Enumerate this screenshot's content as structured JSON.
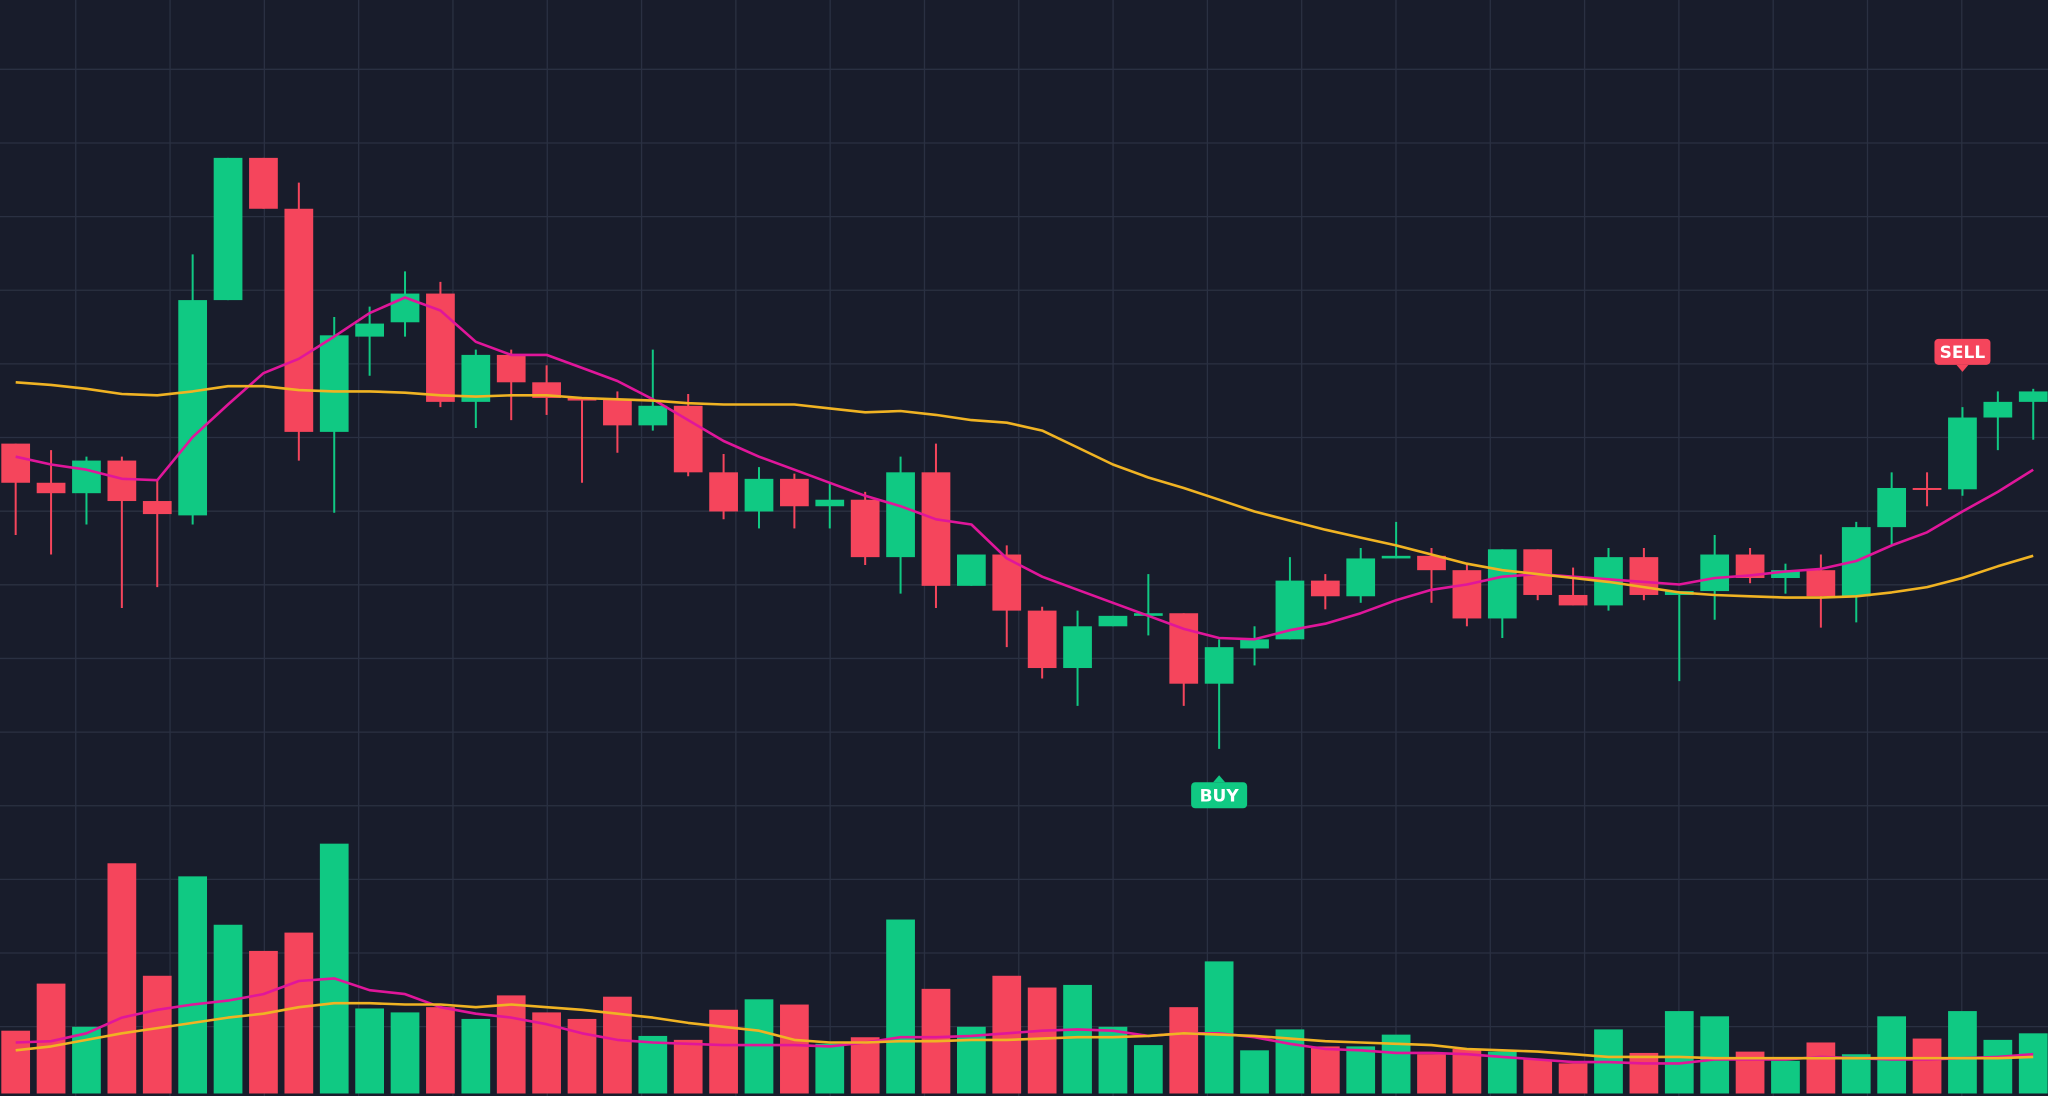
{
  "chart_data": [
    {
      "type": "candlestick",
      "ylim": [
        0,
        84
      ],
      "grid": true,
      "up_color": "#10c983",
      "down_color": "#f5455c",
      "open": [
        50.0,
        47.0,
        46.2,
        48.7,
        45.6,
        44.5,
        61.0,
        71.9,
        68.0,
        50.9,
        58.2,
        59.3,
        61.5,
        53.2,
        56.8,
        54.7,
        53.5,
        53.4,
        51.4,
        52.9,
        47.8,
        44.8,
        47.3,
        45.2,
        45.7,
        41.3,
        47.8,
        39.1,
        41.5,
        37.2,
        32.8,
        36.0,
        36.8,
        37.0,
        31.6,
        34.3,
        35.0,
        39.5,
        38.3,
        41.2,
        41.4,
        40.3,
        36.6,
        41.9,
        38.4,
        37.6,
        41.3,
        38.4,
        38.7,
        41.5,
        39.7,
        40.3,
        38.3,
        43.6,
        46.6,
        46.5,
        52.0,
        53.2
      ],
      "high": [
        50.0,
        49.5,
        49.0,
        49.0,
        47.2,
        64.5,
        71.9,
        71.9,
        70.0,
        59.7,
        60.5,
        63.2,
        62.4,
        57.2,
        57.2,
        56.0,
        53.5,
        54.0,
        57.2,
        53.8,
        49.2,
        48.2,
        47.7,
        47.0,
        46.3,
        49.0,
        50.0,
        41.5,
        42.2,
        37.5,
        37.2,
        36.8,
        40.0,
        37.0,
        35.0,
        36.0,
        41.3,
        40.0,
        42.0,
        44.0,
        42.0,
        40.8,
        41.9,
        41.9,
        40.5,
        42.0,
        42.0,
        38.7,
        43.0,
        42.0,
        40.8,
        41.5,
        44.0,
        47.8,
        47.8,
        52.8,
        54.0,
        54.2
      ],
      "low": [
        43.0,
        41.5,
        43.8,
        37.4,
        39.0,
        43.8,
        61.0,
        68.0,
        48.7,
        44.7,
        55.2,
        58.2,
        52.8,
        51.2,
        51.8,
        52.2,
        47.0,
        49.3,
        51.0,
        47.5,
        44.2,
        43.5,
        43.5,
        43.5,
        40.7,
        38.5,
        37.4,
        39.1,
        34.4,
        32.0,
        29.9,
        36.0,
        35.3,
        29.9,
        26.6,
        33.0,
        35.0,
        37.3,
        37.8,
        41.2,
        37.8,
        36.0,
        35.1,
        38.0,
        37.6,
        37.2,
        38.0,
        31.8,
        36.5,
        39.3,
        38.5,
        35.9,
        36.3,
        42.2,
        45.2,
        46.0,
        49.5,
        50.3
      ],
      "close": [
        47.0,
        46.2,
        48.7,
        45.6,
        44.6,
        61.0,
        71.9,
        68.0,
        50.9,
        58.3,
        59.2,
        61.5,
        53.2,
        56.8,
        54.7,
        53.5,
        53.3,
        51.4,
        52.9,
        47.8,
        44.8,
        47.3,
        45.2,
        45.7,
        41.3,
        47.8,
        39.1,
        41.5,
        37.2,
        32.8,
        36.0,
        36.8,
        37.0,
        31.6,
        34.4,
        35.0,
        39.5,
        38.3,
        41.2,
        41.4,
        40.3,
        36.6,
        41.9,
        38.4,
        37.6,
        41.3,
        38.4,
        38.7,
        41.5,
        39.7,
        40.3,
        38.3,
        43.6,
        46.6,
        46.5,
        52.0,
        53.2,
        54.0
      ],
      "series": [
        {
          "color": "#e0169a",
          "values": [
            49.0,
            48.4,
            48.0,
            47.3,
            47.2,
            50.5,
            53.0,
            55.4,
            56.5,
            58.2,
            60.0,
            61.2,
            60.2,
            57.8,
            56.8,
            56.8,
            55.8,
            54.8,
            53.4,
            51.8,
            50.2,
            49.0,
            48.0,
            47.0,
            46.0,
            45.2,
            44.2,
            43.8,
            41.2,
            39.8,
            38.8,
            37.8,
            36.8,
            35.8,
            35.1,
            35.0,
            35.7,
            36.2,
            37.0,
            38.0,
            38.8,
            39.2,
            39.8,
            40.0,
            39.8,
            39.6,
            39.4,
            39.2,
            39.7,
            39.9,
            40.2,
            40.4,
            41.0,
            42.2,
            43.2,
            44.8,
            46.3,
            48.0
          ]
        },
        {
          "color": "#f0b323",
          "values": [
            54.7,
            54.5,
            54.2,
            53.8,
            53.7,
            54.0,
            54.4,
            54.4,
            54.1,
            54.0,
            54.0,
            53.9,
            53.7,
            53.6,
            53.7,
            53.7,
            53.5,
            53.4,
            53.3,
            53.1,
            53.0,
            53.0,
            53.0,
            52.7,
            52.4,
            52.5,
            52.2,
            51.8,
            51.6,
            51.0,
            49.7,
            48.4,
            47.4,
            46.6,
            45.7,
            44.8,
            44.1,
            43.4,
            42.8,
            42.2,
            41.5,
            40.8,
            40.3,
            40.0,
            39.7,
            39.4,
            39.0,
            38.6,
            38.4,
            38.3,
            38.2,
            38.2,
            38.3,
            38.6,
            39.0,
            39.7,
            40.6,
            41.4
          ]
        }
      ],
      "annotations": [
        "BUY",
        "SELL"
      ]
    },
    {
      "type": "bar",
      "ylim": [
        0,
        100
      ],
      "values": [
        24,
        42,
        25.5,
        88,
        45,
        83,
        64.5,
        54.5,
        61.5,
        95.5,
        32.5,
        31,
        33,
        28.5,
        37.5,
        31,
        28.5,
        37,
        22,
        20.5,
        32,
        36,
        34,
        19,
        21.5,
        66.5,
        40,
        25.5,
        45,
        40.5,
        41.5,
        25.5,
        18.5,
        33,
        50.5,
        16.5,
        24.5,
        18,
        18,
        22.5,
        15,
        17,
        16,
        13,
        11.5,
        24.5,
        15.5,
        31.5,
        29.5,
        16,
        12.5,
        19.5,
        15,
        29.5,
        21,
        31.5,
        20.5,
        23
      ],
      "series": [
        {
          "color": "#e0169a",
          "values": [
            19.5,
            20,
            23,
            29,
            32,
            34,
            35.5,
            38,
            43,
            44,
            39.5,
            38,
            33,
            30.5,
            29,
            26.5,
            23,
            20.5,
            19.5,
            19,
            18.5,
            18.5,
            18.5,
            18,
            19.5,
            21.5,
            21.5,
            22,
            23,
            24,
            24.5,
            24,
            22,
            23,
            23,
            21.5,
            19,
            17,
            16.5,
            15.5,
            15.5,
            15,
            14,
            13,
            12,
            12,
            11.5,
            11.5,
            13,
            13,
            13,
            14,
            13.5,
            13,
            13,
            13.5,
            14,
            15
          ]
        },
        {
          "color": "#f0b323",
          "values": [
            16.5,
            18,
            20.5,
            23,
            25,
            27,
            29,
            30.5,
            33,
            34.5,
            34.5,
            34,
            34,
            33,
            34,
            33,
            32,
            30.5,
            29,
            27,
            25.5,
            24,
            20.5,
            19.5,
            19.5,
            20,
            20,
            20.5,
            20.5,
            21,
            21.5,
            21.5,
            22,
            23,
            22.5,
            22,
            21,
            20,
            19.5,
            19,
            18.5,
            17,
            16.5,
            16,
            15,
            14,
            14,
            14,
            13.5,
            13.5,
            13.5,
            13.5,
            13.5,
            13.5,
            13.5,
            13.5,
            13.5,
            14
          ]
        }
      ]
    }
  ]
}
